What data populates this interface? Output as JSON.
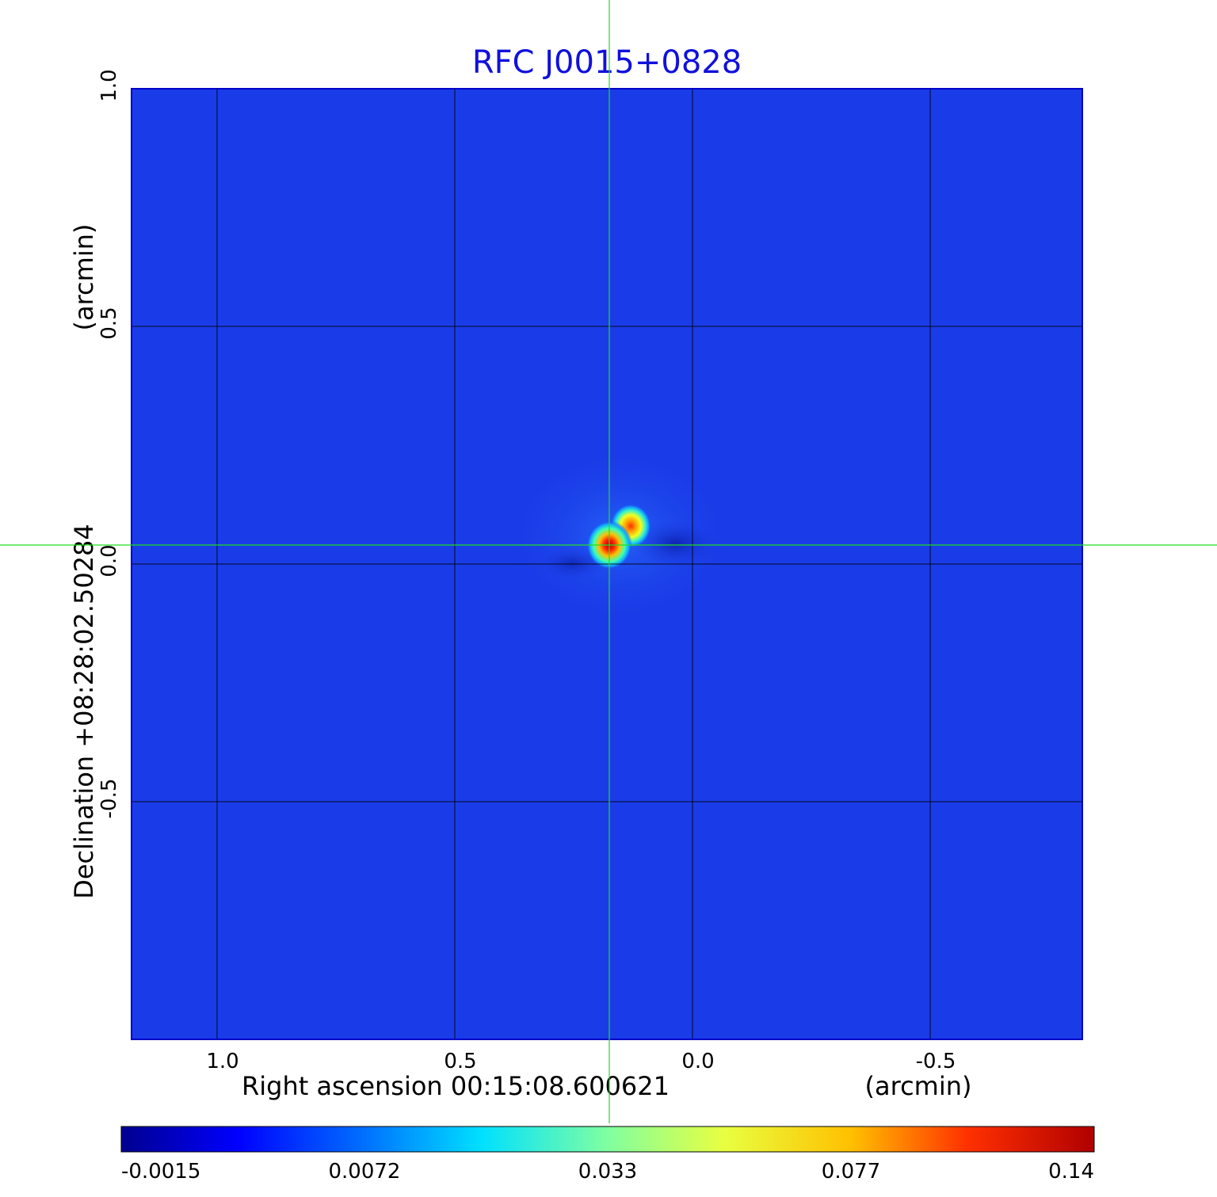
{
  "chart_data": {
    "type": "heatmap",
    "title": "RFC J0015+0828",
    "xlabel": "Right ascension  00:15:08.600621",
    "xunit": "(arcmin)",
    "ylabel": "Declination  +08:28:02.50284",
    "yunit": "(arcmin)",
    "x_ticks": [
      "1.0",
      "0.5",
      "0.0",
      "-0.5"
    ],
    "y_ticks": [
      "1.0",
      "0.5",
      "0.0",
      "-0.5"
    ],
    "x_range": [
      1.18,
      -0.82
    ],
    "y_range": [
      -1.0,
      1.0
    ],
    "grid": true,
    "crosshair": {
      "x": 0.175,
      "y": 0.04
    },
    "colormap": "jet",
    "colorbar_ticks": [
      "-0.0015",
      "0.0072",
      "0.033",
      "0.077",
      "0.14"
    ],
    "value_range": [
      -0.0015,
      0.14
    ],
    "peaks": [
      {
        "x": 0.175,
        "y": 0.04,
        "value": 0.14
      },
      {
        "x": 0.13,
        "y": 0.08,
        "value": 0.11
      }
    ],
    "background_color": "#1a3ce8",
    "crosshair_color": "#22dd22",
    "title_color": "#1010dd"
  }
}
